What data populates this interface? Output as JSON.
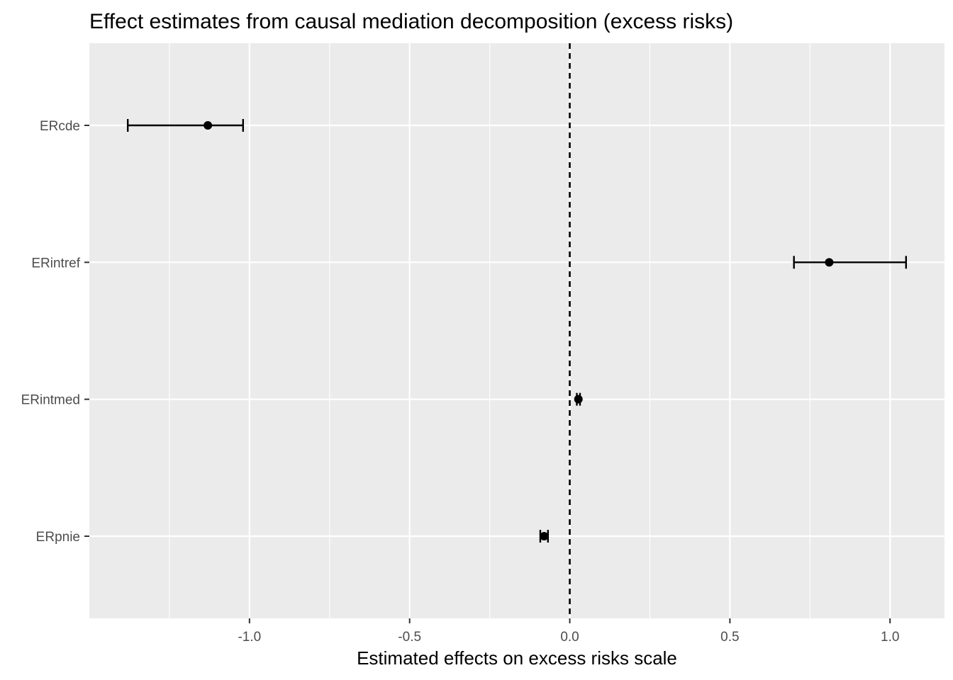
{
  "chart_data": {
    "type": "errorbar",
    "title": "Effect estimates from causal mediation decomposition (excess risks)",
    "xlabel": "Estimated effects on excess risks scale",
    "ylabel": "",
    "xlim": [
      -1.5,
      1.17
    ],
    "x_ticks": [
      -1.0,
      -0.5,
      0.0,
      0.5,
      1.0
    ],
    "x_tick_labels": [
      "-1.0",
      "-0.5",
      "0.0",
      "0.5",
      "1.0"
    ],
    "x_minor_ticks": [
      -1.25,
      -0.75,
      -0.25,
      0.25,
      0.75
    ],
    "categories": [
      "ERcde",
      "ERintref",
      "ERintmed",
      "ERpnie"
    ],
    "points": [
      {
        "label": "ERcde",
        "estimate": -1.13,
        "lower": -1.38,
        "upper": -1.02
      },
      {
        "label": "ERintref",
        "estimate": 0.81,
        "lower": 0.7,
        "upper": 1.05
      },
      {
        "label": "ERintmed",
        "estimate": 0.027,
        "lower": 0.022,
        "upper": 0.032
      },
      {
        "label": "ERpnie",
        "estimate": -0.08,
        "lower": -0.092,
        "upper": -0.068
      }
    ],
    "reference_line": {
      "x": 0.0,
      "style": "dashed"
    },
    "grid": true,
    "legend": "none",
    "colors": {
      "panel": "#ebebeb",
      "grid": "#ffffff",
      "mark": "#000000",
      "tick_text": "#4d4d4d"
    }
  }
}
